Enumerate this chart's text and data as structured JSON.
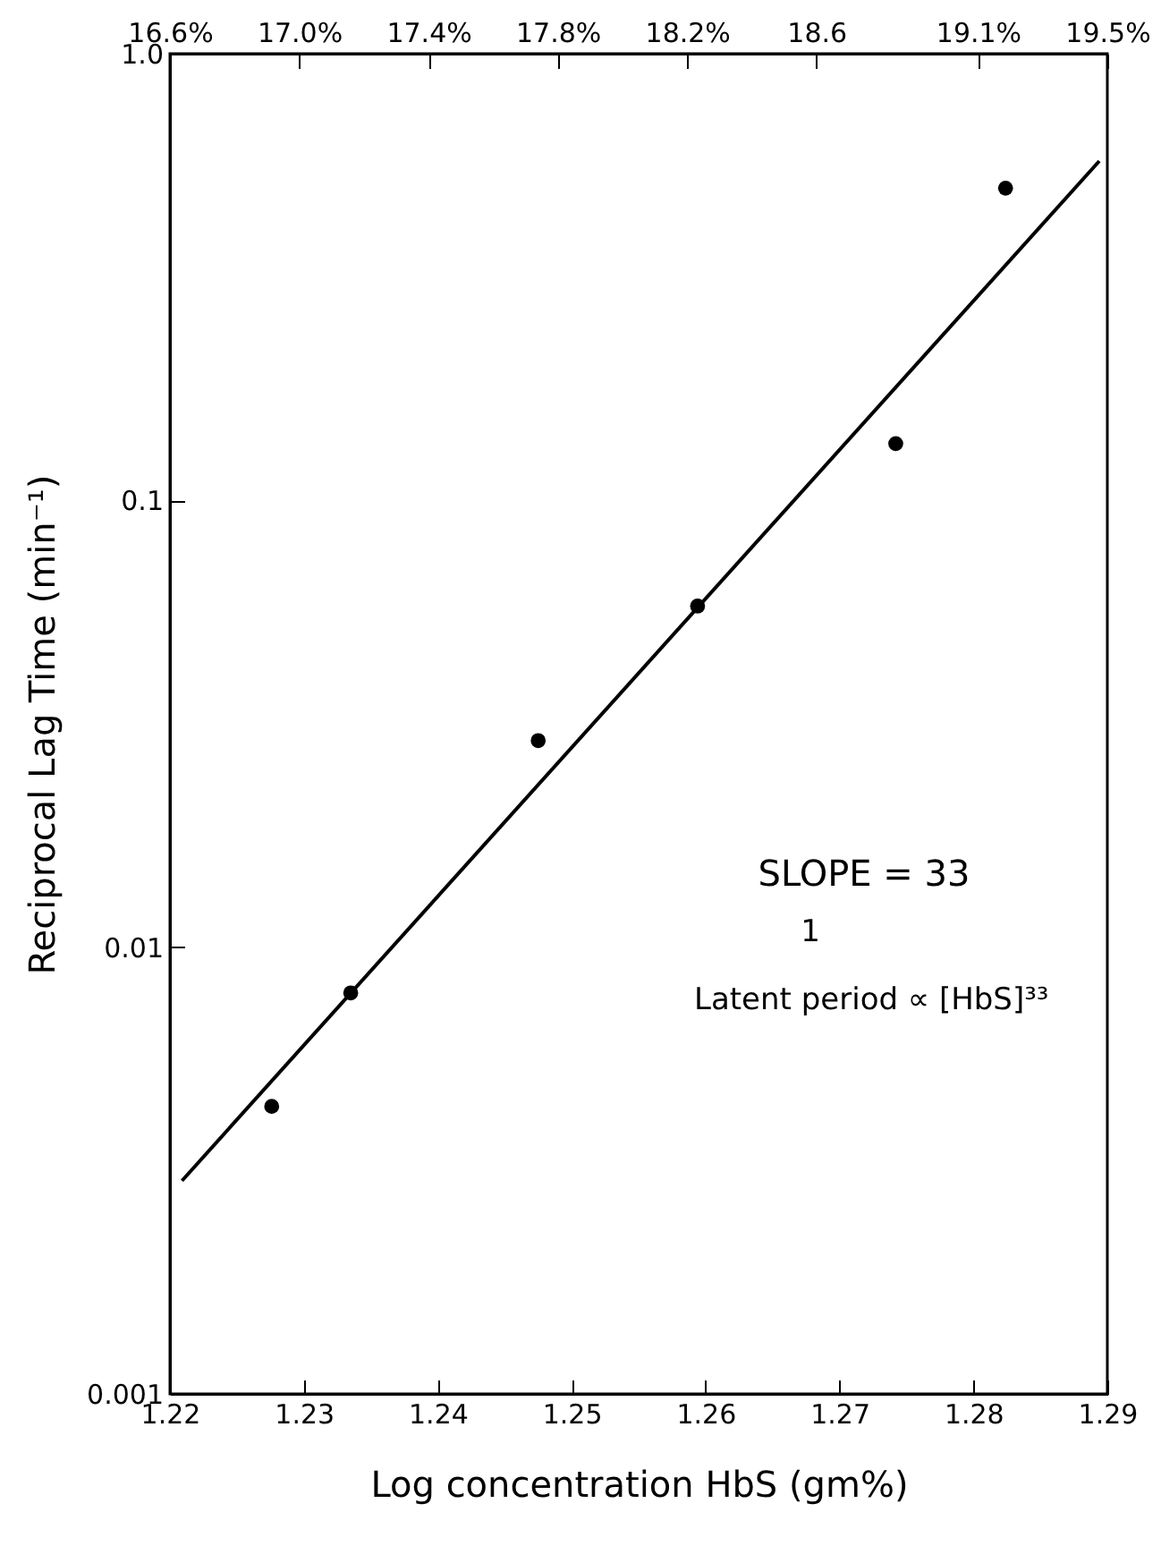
{
  "chart_data": {
    "type": "scatter",
    "xlabel": "Log concentration HbS (gm%)",
    "ylabel": "Reciprocal Lag Time (min⁻¹)",
    "log": "y",
    "xlim": [
      1.22,
      1.29
    ],
    "xticks": [
      1.22,
      1.23,
      1.24,
      1.25,
      1.26,
      1.27,
      1.28,
      1.29
    ],
    "x2lim": [
      16.6,
      19.5
    ],
    "x2ticks": [
      {
        "value": 16.6,
        "label": "16.6%"
      },
      {
        "value": 17.0,
        "label": "17.0%"
      },
      {
        "value": 17.4,
        "label": "17.4%"
      },
      {
        "value": 17.8,
        "label": "17.8%"
      },
      {
        "value": 18.2,
        "label": "18.2%"
      },
      18.6,
      {
        "value": 19.1,
        "label": "19.1%"
      },
      {
        "value": 19.5,
        "label": "19.5%"
      }
    ],
    "ylim": [
      0.001,
      1
    ],
    "yticks": [
      0.001,
      0.01,
      0.1,
      {
        "value": 1,
        "label": "1.0"
      }
    ],
    "series": [
      {
        "color": "#000000",
        "marker": "circle",
        "x": [
          1.2276,
          1.2335,
          1.2475,
          1.2594,
          1.2742,
          1.2824
        ],
        "values": [
          0.0044,
          0.0079,
          0.029,
          0.058,
          0.134,
          0.5
        ]
      },
      {
        "type": "line",
        "color": "#000000",
        "x": [
          1.2209,
          1.2894
        ],
        "values": [
          0.003,
          0.575
        ]
      }
    ],
    "annotations": [
      "SLOPE = 33",
      "1",
      "Latent period ∝ [HbS]³³"
    ]
  }
}
